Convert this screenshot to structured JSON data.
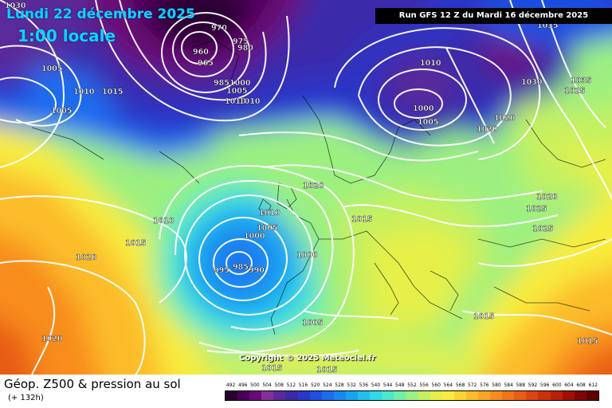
{
  "header": {
    "date_line": "Lundi 22 décembre 2025",
    "time_line": "1:00 locale",
    "run_info": "Run GFS 12 Z du Mardi 16 décembre 2025"
  },
  "copyright": "Copyright © 2025 Meteociel.fr",
  "footer": {
    "title": "Géop. Z500 & pression au sol",
    "subtitle": "(+ 132h)"
  },
  "scale": {
    "values": [
      "492",
      "496",
      "500",
      "504",
      "508",
      "512",
      "516",
      "520",
      "524",
      "528",
      "532",
      "536",
      "540",
      "544",
      "548",
      "552",
      "556",
      "560",
      "564",
      "568",
      "572",
      "576",
      "580",
      "584",
      "588",
      "592",
      "596",
      "600",
      "604",
      "608",
      "612"
    ],
    "colors": [
      "#2a0030",
      "#4a0058",
      "#6a0a78",
      "#84309a",
      "#5a2a9a",
      "#3a2aaa",
      "#2a36c8",
      "#1f50e0",
      "#1c6cf0",
      "#1a88f0",
      "#18a4f0",
      "#20c0f0",
      "#30d8e8",
      "#4ae8cc",
      "#70f0a8",
      "#9cf080",
      "#c4f060",
      "#e6f048",
      "#f8ec3c",
      "#fcd432",
      "#fcbc2a",
      "#fca424",
      "#f88c1e",
      "#f07418",
      "#e85c14",
      "#dc4410",
      "#cc300c",
      "#b82008",
      "#a01006",
      "#800604",
      "#600000"
    ]
  },
  "pressure_labels": [
    "1030",
    "1005",
    "1005",
    "1010",
    "1015",
    "970",
    "975",
    "980",
    "960",
    "965",
    "985",
    "1000",
    "1005",
    "1010",
    "1010",
    "1010",
    "1000",
    "1005",
    "1035",
    "1035",
    "1030",
    "1020",
    "1020",
    "1025",
    "1010",
    "1015",
    "1020",
    "1020",
    "1025",
    "1025",
    "1020",
    "1010",
    "1005",
    "1000",
    "995",
    "985",
    "990",
    "1000",
    "1015",
    "1005",
    "1015",
    "1015",
    "1015",
    "1015",
    "1020"
  ]
}
